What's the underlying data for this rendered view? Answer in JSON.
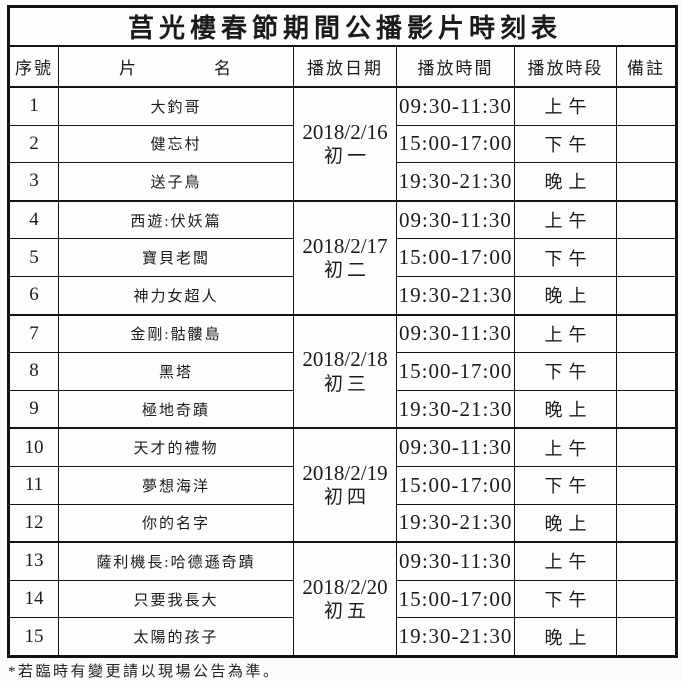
{
  "title": "莒光樓春節期間公播影片時刻表",
  "columns": [
    "序號",
    "片　　　　名",
    "播放日期",
    "播放時間",
    "播放時段",
    "備註"
  ],
  "footnote": "*若臨時有變更請以現場公告為準。",
  "groups": [
    {
      "date": "2018/2/16",
      "lunar_day": "初一",
      "films": [
        {
          "no": "1",
          "name": "大釣哥",
          "time": "09:30-11:30",
          "period": "上午",
          "note": ""
        },
        {
          "no": "2",
          "name": "健忘村",
          "time": "15:00-17:00",
          "period": "下午",
          "note": ""
        },
        {
          "no": "3",
          "name": "送子鳥",
          "time": "19:30-21:30",
          "period": "晚上",
          "note": ""
        }
      ]
    },
    {
      "date": "2018/2/17",
      "lunar_day": "初二",
      "films": [
        {
          "no": "4",
          "name": "西遊:伏妖篇",
          "time": "09:30-11:30",
          "period": "上午",
          "note": ""
        },
        {
          "no": "5",
          "name": "寶貝老闆",
          "time": "15:00-17:00",
          "period": "下午",
          "note": ""
        },
        {
          "no": "6",
          "name": "神力女超人",
          "time": "19:30-21:30",
          "period": "晚上",
          "note": ""
        }
      ]
    },
    {
      "date": "2018/2/18",
      "lunar_day": "初三",
      "films": [
        {
          "no": "7",
          "name": "金剛:骷髏島",
          "time": "09:30-11:30",
          "period": "上午",
          "note": ""
        },
        {
          "no": "8",
          "name": "黑塔",
          "time": "15:00-17:00",
          "period": "下午",
          "note": ""
        },
        {
          "no": "9",
          "name": "極地奇蹟",
          "time": "19:30-21:30",
          "period": "晚上",
          "note": ""
        }
      ]
    },
    {
      "date": "2018/2/19",
      "lunar_day": "初四",
      "films": [
        {
          "no": "10",
          "name": "天才的禮物",
          "time": "09:30-11:30",
          "period": "上午",
          "note": ""
        },
        {
          "no": "11",
          "name": "夢想海洋",
          "time": "15:00-17:00",
          "period": "下午",
          "note": ""
        },
        {
          "no": "12",
          "name": "你的名字",
          "time": "19:30-21:30",
          "period": "晚上",
          "note": ""
        }
      ]
    },
    {
      "date": "2018/2/20",
      "lunar_day": "初五",
      "films": [
        {
          "no": "13",
          "name": "薩利機長:哈德遜奇蹟",
          "time": "09:30-11:30",
          "period": "上午",
          "note": ""
        },
        {
          "no": "14",
          "name": "只要我長大",
          "time": "15:00-17:00",
          "period": "下午",
          "note": ""
        },
        {
          "no": "15",
          "name": "太陽的孩子",
          "time": "19:30-21:30",
          "period": "晚上",
          "note": ""
        }
      ]
    }
  ]
}
